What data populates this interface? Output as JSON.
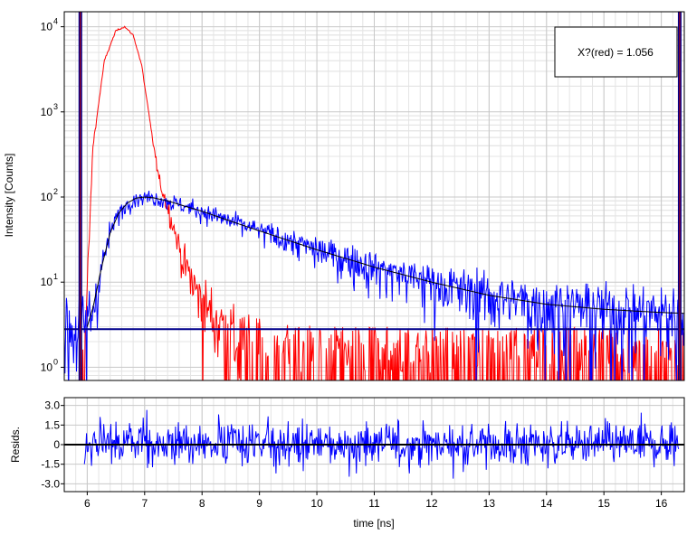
{
  "chart_data": [
    {
      "type": "line",
      "ylabel": "Intensity [Counts]",
      "yscale": "log",
      "xlim": [
        5.6,
        16.4
      ],
      "ylim": [
        0.7,
        15000
      ],
      "x_ticks": [
        "6",
        "7",
        "8",
        "9",
        "10",
        "11",
        "12",
        "13",
        "14",
        "15",
        "16"
      ],
      "y_ticks": [
        {
          "base": "10",
          "exp": "0",
          "value": 1
        },
        {
          "base": "10",
          "exp": "1",
          "value": 10
        },
        {
          "base": "10",
          "exp": "2",
          "value": 100
        },
        {
          "base": "10",
          "exp": "3",
          "value": 1000
        },
        {
          "base": "10",
          "exp": "4",
          "value": 10000
        }
      ],
      "grid": true,
      "annotation": "X?(red) = 1.056",
      "annotation_position": "top-right",
      "vertical_markers": [
        5.88,
        16.32
      ],
      "background_level": 2.8,
      "series": [
        {
          "color": "#ff0000",
          "kind": "noisy",
          "x": [
            5.85,
            5.95,
            6.1,
            6.3,
            6.5,
            6.65,
            6.8,
            6.95,
            7.1,
            7.25,
            7.45,
            7.65,
            7.9,
            8.2,
            8.5,
            8.8,
            9.2,
            10.0,
            11.0,
            12.0,
            13.0,
            14.0,
            15.0,
            16.4
          ],
          "y": [
            0.5,
            1.2,
            400,
            4000,
            9000,
            10000,
            8000,
            3500,
            700,
            160,
            60,
            20,
            8,
            4,
            2.5,
            1.5,
            1.2,
            1.0,
            1.0,
            1.0,
            1.0,
            1.0,
            1.0,
            1.0
          ]
        },
        {
          "color": "#0000ff",
          "kind": "noisy",
          "x": [
            5.6,
            5.95,
            6.1,
            6.25,
            6.4,
            6.55,
            6.7,
            6.85,
            7.0,
            7.15,
            7.4,
            7.7,
            8.0,
            8.5,
            9.0,
            9.5,
            10.0,
            10.5,
            11.0,
            12.0,
            13.0,
            14.0,
            15.0,
            16.0,
            16.4
          ],
          "y": [
            3.0,
            3.0,
            5,
            15,
            38,
            65,
            85,
            97,
            100,
            98,
            90,
            78,
            68,
            52,
            40,
            31,
            24,
            19,
            15,
            10,
            7,
            5.5,
            4.8,
            4.4,
            4.3
          ]
        },
        {
          "color": "#000000",
          "kind": "smooth",
          "x": [
            6.0,
            6.1,
            6.25,
            6.4,
            6.55,
            6.7,
            6.85,
            7.0,
            7.15,
            7.4,
            7.7,
            8.0,
            8.5,
            9.0,
            9.5,
            10.0,
            10.5,
            11.0,
            12.0,
            13.0,
            14.0,
            15.0,
            16.0,
            16.4
          ],
          "y": [
            3.0,
            5,
            15,
            38,
            65,
            85,
            97,
            100,
            98,
            90,
            78,
            68,
            52,
            40,
            31,
            24,
            19,
            15,
            10,
            7,
            5.5,
            4.8,
            4.4,
            4.3
          ]
        },
        {
          "color": "#00008b",
          "kind": "flat",
          "x": [
            5.6,
            16.4
          ],
          "y": [
            2.8,
            2.8
          ]
        }
      ]
    },
    {
      "type": "line",
      "xlabel": "time [ns]",
      "ylabel": "Resids.",
      "xlim": [
        5.6,
        16.4
      ],
      "ylim": [
        -3.6,
        3.6
      ],
      "x_ticks": [
        "6",
        "7",
        "8",
        "9",
        "10",
        "11",
        "12",
        "13",
        "14",
        "15",
        "16"
      ],
      "y_ticks": [
        "3.0",
        "1.5",
        "0",
        "-1.5",
        "-3.0"
      ],
      "grid": true,
      "series": [
        {
          "color": "#0000ff",
          "kind": "noise",
          "x_range": [
            5.95,
            16.3
          ],
          "amplitude": 1.0
        },
        {
          "color": "#000000",
          "kind": "zero",
          "x": [
            5.6,
            16.4
          ],
          "y": [
            0,
            0
          ]
        }
      ]
    }
  ]
}
